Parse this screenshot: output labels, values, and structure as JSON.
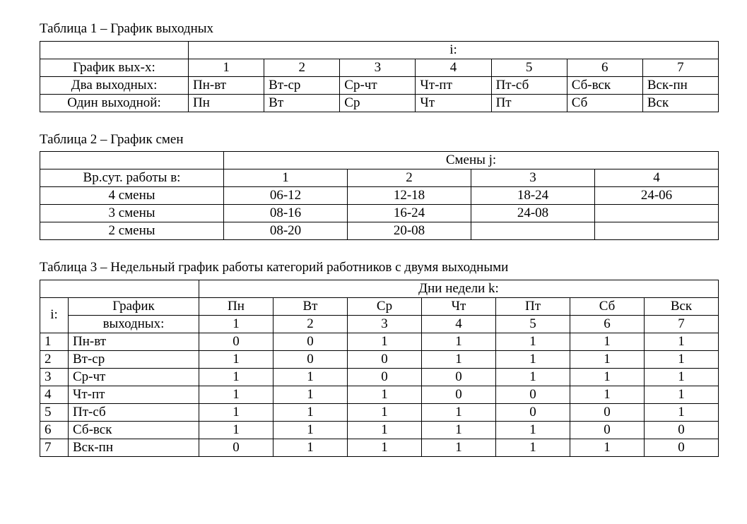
{
  "table1": {
    "caption": "Таблица 1 – График выходных",
    "header_top": "i:",
    "row_labels": [
      "График вых-х:",
      "Два выходных:",
      "Один выходной:"
    ],
    "cols": [
      "1",
      "2",
      "3",
      "4",
      "5",
      "6",
      "7"
    ],
    "two_off": [
      "Пн-вт",
      "Вт-ср",
      "Ср-чт",
      "Чт-пт",
      "Пт-сб",
      "Сб-вск",
      "Вск-пн"
    ],
    "one_off": [
      "Пн",
      "Вт",
      "Ср",
      "Чт",
      "Пт",
      "Сб",
      "Вск"
    ]
  },
  "table2": {
    "caption": "Таблица 2 – График смен",
    "header_top": "Смены j:",
    "row_labels": [
      "Вр.сут. работы в:",
      "4 смены",
      "3 смены",
      "2 смены"
    ],
    "cols": [
      "1",
      "2",
      "3",
      "4"
    ],
    "shifts4": [
      "06-12",
      "12-18",
      "18-24",
      "24-06"
    ],
    "shifts3": [
      "08-16",
      "16-24",
      "24-08",
      ""
    ],
    "shifts2": [
      "08-20",
      "20-08",
      "",
      ""
    ]
  },
  "table3": {
    "caption": "Таблица 3 – Недельный график работы категорий  работников с двумя выходными",
    "header_top": "Дни недели k:",
    "i_label": "i:",
    "schedule_label_l1": "График",
    "schedule_label_l2": "выходных:",
    "day_names": [
      "Пн",
      "Вт",
      "Ср",
      "Чт",
      "Пт",
      "Сб",
      "Вск"
    ],
    "day_nums": [
      "1",
      "2",
      "3",
      "4",
      "5",
      "6",
      "7"
    ],
    "rows": [
      {
        "i": "1",
        "name": "Пн-вт",
        "v": [
          "0",
          "0",
          "1",
          "1",
          "1",
          "1",
          "1"
        ]
      },
      {
        "i": "2",
        "name": "Вт-ср",
        "v": [
          "1",
          "0",
          "0",
          "1",
          "1",
          "1",
          "1"
        ]
      },
      {
        "i": "3",
        "name": "Ср-чт",
        "v": [
          "1",
          "1",
          "0",
          "0",
          "1",
          "1",
          "1"
        ]
      },
      {
        "i": "4",
        "name": "Чт-пт",
        "v": [
          "1",
          "1",
          "1",
          "0",
          "0",
          "1",
          "1"
        ]
      },
      {
        "i": "5",
        "name": "Пт-сб",
        "v": [
          "1",
          "1",
          "1",
          "1",
          "0",
          "0",
          "1"
        ]
      },
      {
        "i": "6",
        "name": "Сб-вск",
        "v": [
          "1",
          "1",
          "1",
          "1",
          "1",
          "0",
          "0"
        ]
      },
      {
        "i": "7",
        "name": "Вск-пн",
        "v": [
          "0",
          "1",
          "1",
          "1",
          "1",
          "1",
          "0"
        ]
      }
    ]
  }
}
